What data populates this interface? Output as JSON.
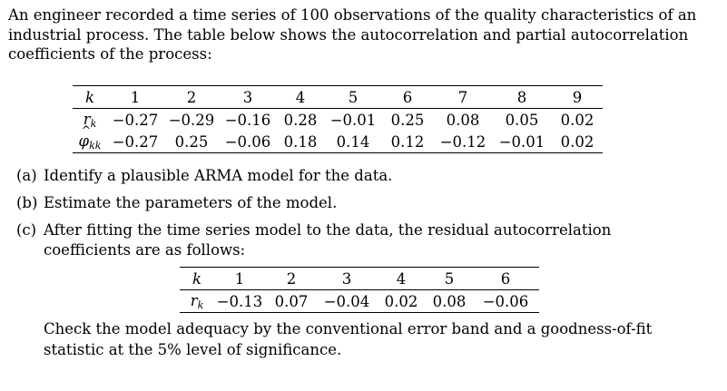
{
  "intro": "An engineer recorded a time series of 100 observations of the quality characteristics of an industrial process. The table below shows the autocorrelation and partial autocorrelation coefficients of the process:",
  "table1": {
    "k_sym": "k",
    "r_sym": "r",
    "r_sub": "k",
    "phi_sym": "φ",
    "phi_hat": "^",
    "phi_sub": "kk",
    "k": [
      "1",
      "2",
      "3",
      "4",
      "5",
      "6",
      "7",
      "8",
      "9"
    ],
    "r": [
      "−0.27",
      "−0.29",
      "−0.16",
      "0.28",
      "−0.01",
      "0.25",
      "0.08",
      "0.05",
      "0.02"
    ],
    "phi": [
      "−0.27",
      "0.25",
      "−0.06",
      "0.18",
      "0.14",
      "0.12",
      "−0.12",
      "−0.01",
      "0.02"
    ]
  },
  "parts": {
    "a_label": "(a)",
    "a_text": "Identify a plausible ARMA model for the data.",
    "b_label": "(b)",
    "b_text": "Estimate the parameters of the model.",
    "c_label": "(c)",
    "c_text": "After fitting the time series model to the data, the residual autocorrelation coefficients are as follows:"
  },
  "table2": {
    "k_sym": "k",
    "r_sym": "r",
    "r_sub": "k",
    "k": [
      "1",
      "2",
      "3",
      "4",
      "5",
      "6"
    ],
    "r": [
      "−0.13",
      "0.07",
      "−0.04",
      "0.02",
      "0.08",
      "−0.06"
    ]
  },
  "closing": "Check the model adequacy by the conventional error band and a goodness-of-fit statistic at the 5% level of significance."
}
